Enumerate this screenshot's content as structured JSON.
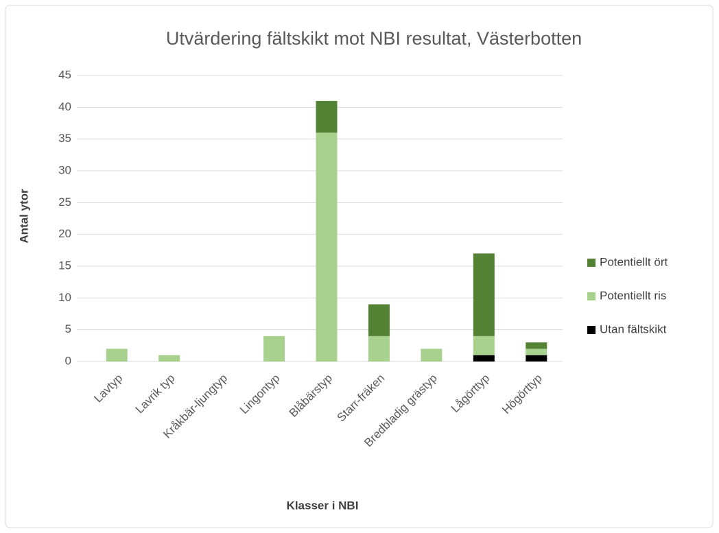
{
  "chart_data": {
    "type": "stacked_bar",
    "title": "Utvärdering fältskikt mot NBI resultat, Västerbotten",
    "x_label": "Klasser i NBI",
    "y_label": "Antal ytor",
    "categories": [
      "Lavtyp",
      "Lavrik typ",
      "Kråkbär-ljungtyp",
      "Lingontyp",
      "Blåbärstyp",
      "Starr-fräken",
      "Bredbladig grästyp",
      "Lågörttyp",
      "Högörttyp"
    ],
    "series": [
      {
        "name": "Utan fältskikt",
        "color": "#000000",
        "values": [
          0,
          0,
          0,
          0,
          0,
          0,
          0,
          1,
          1
        ]
      },
      {
        "name": "Potentiellt ris",
        "color": "#a9d18e",
        "values": [
          2,
          1,
          0,
          4,
          36,
          4,
          2,
          3,
          1
        ]
      },
      {
        "name": "Potentiellt ört",
        "color": "#548235",
        "values": [
          0,
          0,
          0,
          0,
          5,
          5,
          0,
          13,
          1
        ]
      }
    ],
    "ylim": [
      0,
      45
    ],
    "yticks": [
      0,
      5,
      10,
      15,
      20,
      25,
      30,
      35,
      40,
      45
    ],
    "grid": true,
    "legend": "right"
  }
}
